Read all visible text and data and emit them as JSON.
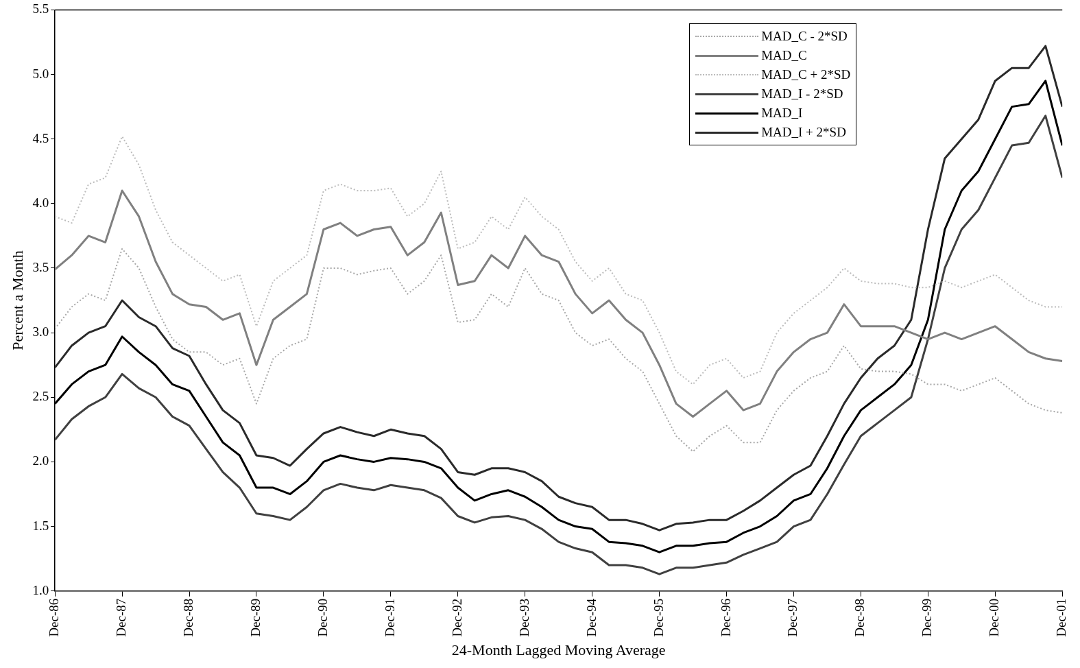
{
  "chart_data": {
    "type": "line",
    "xlabel": "24-Month Lagged Moving Average",
    "ylabel": "Percent a Month",
    "x": [
      "1986-12",
      "1987-03",
      "1987-06",
      "1987-09",
      "1987-12",
      "1988-03",
      "1988-06",
      "1988-09",
      "1988-12",
      "1989-03",
      "1989-06",
      "1989-09",
      "1989-12",
      "1990-03",
      "1990-06",
      "1990-09",
      "1990-12",
      "1991-03",
      "1991-06",
      "1991-09",
      "1991-12",
      "1992-03",
      "1992-06",
      "1992-09",
      "1992-12",
      "1993-03",
      "1993-06",
      "1993-09",
      "1993-12",
      "1994-03",
      "1994-06",
      "1994-09",
      "1994-12",
      "1995-03",
      "1995-06",
      "1995-09",
      "1995-12",
      "1996-03",
      "1996-06",
      "1996-09",
      "1996-12",
      "1997-03",
      "1997-06",
      "1997-09",
      "1997-12",
      "1998-03",
      "1998-06",
      "1998-09",
      "1998-12",
      "1999-03",
      "1999-06",
      "1999-09",
      "1999-12",
      "2000-03",
      "2000-06",
      "2000-09",
      "2000-12",
      "2001-03",
      "2001-06",
      "2001-09",
      "2001-12"
    ],
    "xlim": [
      "1986-12",
      "2001-12"
    ],
    "xticks": [
      {
        "value": "1986-12",
        "label": "Dec-86"
      },
      {
        "value": "1987-12",
        "label": "Dec-87"
      },
      {
        "value": "1988-12",
        "label": "Dec-88"
      },
      {
        "value": "1989-12",
        "label": "Dec-89"
      },
      {
        "value": "1990-12",
        "label": "Dec-90"
      },
      {
        "value": "1991-12",
        "label": "Dec-91"
      },
      {
        "value": "1992-12",
        "label": "Dec-92"
      },
      {
        "value": "1993-12",
        "label": "Dec-93"
      },
      {
        "value": "1994-12",
        "label": "Dec-94"
      },
      {
        "value": "1995-12",
        "label": "Dec-95"
      },
      {
        "value": "1996-12",
        "label": "Dec-96"
      },
      {
        "value": "1997-12",
        "label": "Dec-97"
      },
      {
        "value": "1998-12",
        "label": "Dec-98"
      },
      {
        "value": "1999-12",
        "label": "Dec-99"
      },
      {
        "value": "2000-12",
        "label": "Dec-00"
      },
      {
        "value": "2001-12",
        "label": "Dec-01"
      }
    ],
    "ylim": [
      1,
      5.5
    ],
    "yticks": [
      {
        "value": 1,
        "label": "1.0"
      },
      1.5,
      {
        "value": 2,
        "label": "2.0"
      },
      2.5,
      {
        "value": 3,
        "label": "3.0"
      },
      3.5,
      {
        "value": 4,
        "label": "4.0"
      },
      4.5,
      {
        "value": 5,
        "label": "5.0"
      },
      5.5
    ],
    "grid": false,
    "legend": "top right",
    "marker": "none",
    "series": [
      {
        "name": "MAD_C - 2*SD",
        "color": "#a8a8a8",
        "line_style": "dotted",
        "values": [
          3.03,
          3.2,
          3.3,
          3.25,
          3.65,
          3.5,
          3.2,
          2.95,
          2.85,
          2.85,
          2.75,
          2.8,
          2.45,
          2.8,
          2.9,
          2.95,
          3.5,
          3.5,
          3.45,
          3.48,
          3.5,
          3.3,
          3.4,
          3.6,
          3.08,
          3.1,
          3.3,
          3.2,
          3.5,
          3.3,
          3.25,
          3.0,
          2.9,
          2.95,
          2.8,
          2.7,
          2.45,
          2.2,
          2.08,
          2.2,
          2.28,
          2.15,
          2.15,
          2.4,
          2.55,
          2.65,
          2.7,
          2.9,
          2.72,
          2.7,
          2.7,
          2.68,
          2.6,
          2.6,
          2.55,
          2.6,
          2.65,
          2.55,
          2.45,
          2.4,
          2.38
        ]
      },
      {
        "name": "MAD_C",
        "color": "#808080",
        "line_style": "solid",
        "values": [
          3.49,
          3.6,
          3.75,
          3.7,
          4.1,
          3.9,
          3.55,
          3.3,
          3.22,
          3.2,
          3.1,
          3.15,
          2.75,
          3.1,
          3.2,
          3.3,
          3.8,
          3.85,
          3.75,
          3.8,
          3.82,
          3.6,
          3.7,
          3.93,
          3.37,
          3.4,
          3.6,
          3.5,
          3.75,
          3.6,
          3.55,
          3.3,
          3.15,
          3.25,
          3.1,
          3.0,
          2.75,
          2.45,
          2.35,
          2.45,
          2.55,
          2.4,
          2.45,
          2.7,
          2.85,
          2.95,
          3.0,
          3.22,
          3.05,
          3.05,
          3.05,
          3.0,
          2.95,
          3.0,
          2.95,
          3.0,
          3.05,
          2.95,
          2.85,
          2.8,
          2.78
        ]
      },
      {
        "name": "MAD_C + 2*SD",
        "color": "#bcbcbc",
        "line_style": "dotted",
        "values": [
          3.9,
          3.85,
          4.15,
          4.2,
          4.52,
          4.3,
          3.95,
          3.7,
          3.6,
          3.5,
          3.4,
          3.45,
          3.05,
          3.4,
          3.5,
          3.6,
          4.1,
          4.15,
          4.1,
          4.1,
          4.12,
          3.9,
          4.0,
          4.25,
          3.65,
          3.7,
          3.9,
          3.8,
          4.05,
          3.9,
          3.8,
          3.55,
          3.4,
          3.5,
          3.3,
          3.25,
          3.0,
          2.7,
          2.6,
          2.75,
          2.8,
          2.65,
          2.7,
          3.0,
          3.15,
          3.25,
          3.35,
          3.5,
          3.4,
          3.38,
          3.38,
          3.35,
          3.35,
          3.4,
          3.35,
          3.4,
          3.45,
          3.35,
          3.25,
          3.2,
          3.2
        ]
      },
      {
        "name": "MAD_I - 2*SD",
        "color": "#404040",
        "line_style": "solid",
        "values": [
          2.17,
          2.33,
          2.43,
          2.5,
          2.68,
          2.57,
          2.5,
          2.35,
          2.28,
          2.1,
          1.92,
          1.8,
          1.6,
          1.58,
          1.55,
          1.65,
          1.78,
          1.83,
          1.8,
          1.78,
          1.82,
          1.8,
          1.78,
          1.72,
          1.58,
          1.53,
          1.57,
          1.58,
          1.55,
          1.48,
          1.38,
          1.33,
          1.3,
          1.2,
          1.2,
          1.18,
          1.13,
          1.18,
          1.18,
          1.2,
          1.22,
          1.28,
          1.33,
          1.38,
          1.5,
          1.55,
          1.75,
          1.98,
          2.2,
          2.3,
          2.4,
          2.5,
          2.95,
          3.5,
          3.8,
          3.95,
          4.2,
          4.45,
          4.47,
          4.68,
          4.2
        ]
      },
      {
        "name": "MAD_I",
        "color": "#000000",
        "line_style": "solid",
        "values": [
          2.45,
          2.6,
          2.7,
          2.75,
          2.97,
          2.85,
          2.75,
          2.6,
          2.55,
          2.35,
          2.15,
          2.05,
          1.8,
          1.8,
          1.75,
          1.85,
          2.0,
          2.05,
          2.02,
          2.0,
          2.03,
          2.02,
          2.0,
          1.95,
          1.8,
          1.7,
          1.75,
          1.78,
          1.73,
          1.65,
          1.55,
          1.5,
          1.48,
          1.38,
          1.37,
          1.35,
          1.3,
          1.35,
          1.35,
          1.37,
          1.38,
          1.45,
          1.5,
          1.58,
          1.7,
          1.75,
          1.95,
          2.2,
          2.4,
          2.5,
          2.6,
          2.75,
          3.1,
          3.8,
          4.1,
          4.25,
          4.5,
          4.75,
          4.77,
          4.95,
          4.45
        ]
      },
      {
        "name": "MAD_I + 2*SD",
        "color": "#2a2a2a",
        "line_style": "solid",
        "values": [
          2.73,
          2.9,
          3.0,
          3.05,
          3.25,
          3.12,
          3.05,
          2.88,
          2.82,
          2.6,
          2.4,
          2.3,
          2.05,
          2.03,
          1.97,
          2.1,
          2.22,
          2.27,
          2.23,
          2.2,
          2.25,
          2.22,
          2.2,
          2.1,
          1.92,
          1.9,
          1.95,
          1.95,
          1.92,
          1.85,
          1.73,
          1.68,
          1.65,
          1.55,
          1.55,
          1.52,
          1.47,
          1.52,
          1.53,
          1.55,
          1.55,
          1.62,
          1.7,
          1.8,
          1.9,
          1.97,
          2.2,
          2.45,
          2.65,
          2.8,
          2.9,
          3.1,
          3.8,
          4.35,
          4.5,
          4.65,
          4.95,
          5.05,
          5.05,
          5.22,
          4.75
        ]
      }
    ]
  }
}
